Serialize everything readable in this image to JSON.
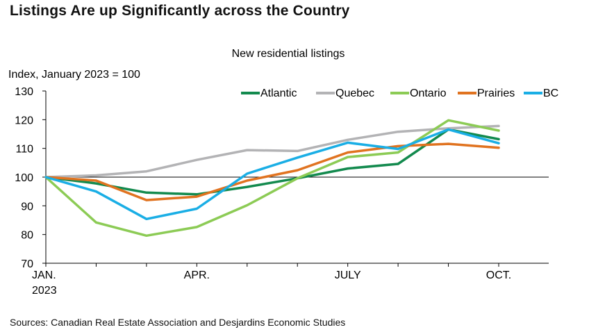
{
  "header": {
    "title": "Listings Are up Significantly across the Country"
  },
  "footer": {
    "source": "Sources: Canadian Real Estate Association and Desjardins Economic Studies"
  },
  "chart_data": {
    "type": "line",
    "title": "New residential listings",
    "ylabel": "Index, January 2023 = 100",
    "xlabel": "",
    "ylim": [
      70,
      130
    ],
    "yticks": [
      70,
      80,
      90,
      100,
      110,
      120,
      130
    ],
    "reference_line": 100,
    "x": [
      0,
      1,
      2,
      3,
      4,
      5,
      6,
      7,
      8,
      9
    ],
    "x_tick_labels": [
      {
        "index": 0,
        "label": "JAN.",
        "sublabel": "2023"
      },
      {
        "index": 3,
        "label": "APR.",
        "sublabel": ""
      },
      {
        "index": 6,
        "label": "JULY",
        "sublabel": ""
      },
      {
        "index": 9,
        "label": "OCT.",
        "sublabel": ""
      }
    ],
    "legend_position": "top-right",
    "series": [
      {
        "name": "Atlantic",
        "color": "#138a4e",
        "values": [
          100,
          97.8,
          94.6,
          94.0,
          96.6,
          99.6,
          103.0,
          104.6,
          116.6,
          113.2
        ]
      },
      {
        "name": "Quebec",
        "color": "#b3b3b5",
        "values": [
          100,
          100.6,
          102.0,
          106.0,
          109.4,
          109.1,
          113.0,
          115.8,
          117.0,
          117.8
        ]
      },
      {
        "name": "Ontario",
        "color": "#8ccb55",
        "values": [
          100,
          84.2,
          79.6,
          82.6,
          90.2,
          99.6,
          107.0,
          108.6,
          119.8,
          116.2
        ]
      },
      {
        "name": "Prairies",
        "color": "#e07320",
        "values": [
          100,
          98.8,
          92.0,
          93.2,
          98.8,
          102.4,
          108.6,
          110.8,
          111.6,
          110.2
        ]
      },
      {
        "name": "BC",
        "color": "#1aaee5",
        "values": [
          100,
          95.0,
          85.4,
          89.0,
          101.2,
          106.8,
          112.0,
          109.8,
          116.6,
          111.8
        ]
      }
    ]
  }
}
